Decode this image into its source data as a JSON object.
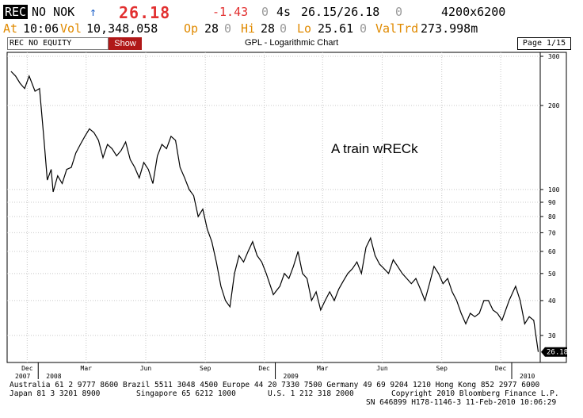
{
  "quote": {
    "ticker": "REC",
    "exchange": "NO NOK",
    "arrow": "↑",
    "last": "26.18",
    "change": "-1.43",
    "zero1": "0",
    "quote_time": "4s",
    "bid_ask": "26.15/26.18",
    "zero2": "0",
    "bid_ask_size": "4200x6200",
    "at": "At",
    "time": "10:06",
    "vol_label": "Vol",
    "volume": "10,348,058",
    "op_label": "Op",
    "open": "28",
    "zero3": "0",
    "hi_label": "Hi",
    "high": "28",
    "zero4": "0",
    "lo_label": "Lo",
    "low": "25.61",
    "zero5": "0",
    "valtrd_label": "ValTrd",
    "valtrd": "273.998m"
  },
  "toolbar": {
    "security": "REC NO EQUITY",
    "show_label": "Show",
    "chart_title": "GPL - Logarithmic Chart",
    "page": "Page 1/15"
  },
  "annotation": "A train wRECk",
  "last_price_label": "26.180",
  "colors": {
    "brand_red": "#b01818",
    "amber": "#e08a00",
    "price_red": "#e23030",
    "grid": "#c8c8c8"
  },
  "footer": {
    "line1": "Australia 61 2 9777 8600 Brazil 5511 3048 4500 Europe 44 20 7330 7500 Germany 49 69 9204 1210 Hong Kong 852 2977 6000",
    "line2a": "Japan 81 3 3201 8900",
    "line2b": "Singapore 65 6212 1000",
    "line2c": "U.S. 1 212 318 2000",
    "line2d": "Copyright 2010 Bloomberg Finance L.P.",
    "line3": "SN 646899 H178-1146-3 11-Feb-2010 10:06:29"
  },
  "chart_data": {
    "type": "line",
    "title": "GPL - Logarithmic Chart",
    "y_scale": "log",
    "ylim": [
      24,
      310
    ],
    "y_ticks": [
      30,
      40,
      50,
      60,
      70,
      80,
      90,
      100,
      200,
      300
    ],
    "x_month_ticks": [
      "Dec",
      "Mar",
      "Jun",
      "Sep",
      "Dec",
      "Mar",
      "Jun",
      "Sep",
      "Dec"
    ],
    "x_year_labels": [
      "2007",
      "2008",
      "2009",
      "2010"
    ],
    "grid": true,
    "series": [
      {
        "x": [
          "2007-11-20",
          "2007-11-27",
          "2007-12-04",
          "2007-12-11",
          "2007-12-18",
          "2007-12-27",
          "2008-01-03",
          "2008-01-10",
          "2008-01-15",
          "2008-01-21",
          "2008-01-24",
          "2008-01-31",
          "2008-02-07",
          "2008-02-14",
          "2008-02-21",
          "2008-02-28",
          "2008-03-06",
          "2008-03-13",
          "2008-03-20",
          "2008-03-27",
          "2008-04-03",
          "2008-04-10",
          "2008-04-17",
          "2008-04-24",
          "2008-05-01",
          "2008-05-08",
          "2008-05-15",
          "2008-05-22",
          "2008-05-29",
          "2008-06-05",
          "2008-06-12",
          "2008-06-19",
          "2008-06-26",
          "2008-07-03",
          "2008-07-10",
          "2008-07-17",
          "2008-07-24",
          "2008-07-31",
          "2008-08-07",
          "2008-08-14",
          "2008-08-21",
          "2008-08-28",
          "2008-09-04",
          "2008-09-11",
          "2008-09-18",
          "2008-09-25",
          "2008-10-02",
          "2008-10-09",
          "2008-10-16",
          "2008-10-23",
          "2008-10-30",
          "2008-11-06",
          "2008-11-13",
          "2008-11-20",
          "2008-11-27",
          "2008-12-04",
          "2008-12-11",
          "2008-12-18",
          "2008-12-29",
          "2009-01-08",
          "2009-01-15",
          "2009-01-22",
          "2009-01-29",
          "2009-02-05",
          "2009-02-12",
          "2009-02-19",
          "2009-02-26",
          "2009-03-05",
          "2009-03-12",
          "2009-03-19",
          "2009-03-26",
          "2009-04-02",
          "2009-04-09",
          "2009-04-16",
          "2009-04-23",
          "2009-04-30",
          "2009-05-07",
          "2009-05-14",
          "2009-05-21",
          "2009-05-28",
          "2009-06-04",
          "2009-06-11",
          "2009-06-18",
          "2009-06-25",
          "2009-07-02",
          "2009-07-09",
          "2009-07-16",
          "2009-07-23",
          "2009-07-30",
          "2009-08-06",
          "2009-08-13",
          "2009-08-20",
          "2009-08-27",
          "2009-09-03",
          "2009-09-10",
          "2009-09-17",
          "2009-09-24",
          "2009-10-01",
          "2009-10-08",
          "2009-10-15",
          "2009-10-22",
          "2009-10-29",
          "2009-11-05",
          "2009-11-12",
          "2009-11-19",
          "2009-11-26",
          "2009-12-03",
          "2009-12-10",
          "2009-12-17",
          "2009-12-28",
          "2010-01-07",
          "2010-01-14",
          "2010-01-21",
          "2010-01-28",
          "2010-02-04",
          "2010-02-11"
        ],
        "values": [
          265,
          255,
          240,
          230,
          255,
          225,
          230,
          150,
          108,
          118,
          98,
          112,
          105,
          118,
          120,
          135,
          145,
          155,
          165,
          160,
          150,
          130,
          145,
          140,
          132,
          138,
          148,
          128,
          120,
          110,
          125,
          118,
          105,
          132,
          145,
          140,
          155,
          150,
          120,
          110,
          100,
          95,
          80,
          85,
          72,
          65,
          55,
          45,
          40,
          38,
          50,
          58,
          55,
          60,
          65,
          58,
          55,
          50,
          42,
          45,
          50,
          48,
          53,
          60,
          50,
          48,
          40,
          43,
          37,
          40,
          43,
          40,
          44,
          47,
          50,
          52,
          55,
          50,
          62,
          67,
          58,
          54,
          52,
          50,
          56,
          53,
          50,
          48,
          46,
          48,
          44,
          40,
          46,
          53,
          50,
          46,
          48,
          43,
          40,
          36,
          33,
          36,
          35,
          36,
          40,
          40,
          37,
          36,
          34,
          40,
          45,
          40,
          33,
          35,
          34,
          26.18
        ]
      }
    ]
  }
}
